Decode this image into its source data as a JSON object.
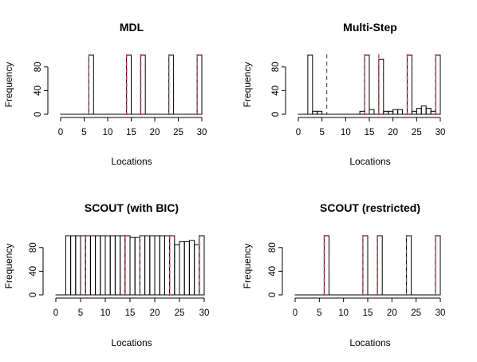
{
  "chart_data": [
    {
      "type": "bar",
      "title": "MDL",
      "xlabel": "Locations",
      "ylabel": "Frequency",
      "xlim": [
        0,
        30
      ],
      "ylim": [
        0,
        100
      ],
      "xticks": [
        0,
        5,
        10,
        15,
        20,
        25,
        30
      ],
      "yticks": [
        0,
        40,
        80
      ],
      "bin_width": 1,
      "bin_start": 0,
      "bins": 30,
      "counts": [
        0,
        0,
        0,
        0,
        0,
        0,
        100,
        0,
        0,
        0,
        0,
        0,
        0,
        0,
        100,
        0,
        0,
        100,
        0,
        0,
        0,
        0,
        0,
        100,
        0,
        0,
        0,
        0,
        0,
        100
      ],
      "reference_lines": [
        6,
        14,
        17,
        23,
        29
      ],
      "reference_line_color": "#e8202a"
    },
    {
      "type": "bar",
      "title": "Multi-Step",
      "xlabel": "Locations",
      "ylabel": "Frequency",
      "xlim": [
        0,
        30
      ],
      "ylim": [
        0,
        100
      ],
      "xticks": [
        0,
        5,
        10,
        15,
        20,
        25,
        30
      ],
      "yticks": [
        0,
        40,
        80
      ],
      "bin_width": 1,
      "bin_start": 0,
      "bins": 30,
      "counts": [
        0,
        0,
        100,
        5,
        5,
        0,
        0,
        0,
        0,
        0,
        0,
        0,
        0,
        5,
        100,
        8,
        0,
        93,
        5,
        5,
        8,
        8,
        0,
        100,
        5,
        10,
        14,
        10,
        5,
        100
      ],
      "reference_lines": [
        6,
        14,
        17,
        23,
        29
      ],
      "reference_line_color": "#e8202a"
    },
    {
      "type": "bar",
      "title": "SCOUT (with BIC)",
      "xlabel": "Locations",
      "ylabel": "Frequency",
      "xlim": [
        0,
        30
      ],
      "ylim": [
        0,
        100
      ],
      "xticks": [
        0,
        5,
        10,
        15,
        20,
        25,
        30
      ],
      "yticks": [
        0,
        40,
        80
      ],
      "bin_width": 1,
      "bin_start": 0,
      "bins": 30,
      "counts": [
        0,
        0,
        100,
        100,
        100,
        100,
        100,
        100,
        100,
        100,
        100,
        100,
        100,
        100,
        100,
        97,
        97,
        100,
        100,
        100,
        100,
        100,
        100,
        100,
        85,
        90,
        90,
        92,
        85,
        100
      ],
      "reference_lines": [
        6,
        14,
        17,
        23,
        29
      ],
      "reference_line_color": "#e8202a"
    },
    {
      "type": "bar",
      "title": "SCOUT (restricted)",
      "xlabel": "Locations",
      "ylabel": "Frequency",
      "xlim": [
        0,
        30
      ],
      "ylim": [
        0,
        100
      ],
      "xticks": [
        0,
        5,
        10,
        15,
        20,
        25,
        30
      ],
      "yticks": [
        0,
        40,
        80
      ],
      "bin_width": 1,
      "bin_start": 0,
      "bins": 30,
      "counts": [
        0,
        0,
        0,
        0,
        0,
        0,
        100,
        0,
        0,
        0,
        0,
        0,
        0,
        0,
        100,
        0,
        0,
        100,
        0,
        0,
        0,
        0,
        0,
        100,
        0,
        0,
        0,
        0,
        0,
        100
      ],
      "reference_lines": [
        6,
        14,
        17,
        23,
        29
      ],
      "reference_line_color": "#e8202a"
    }
  ]
}
